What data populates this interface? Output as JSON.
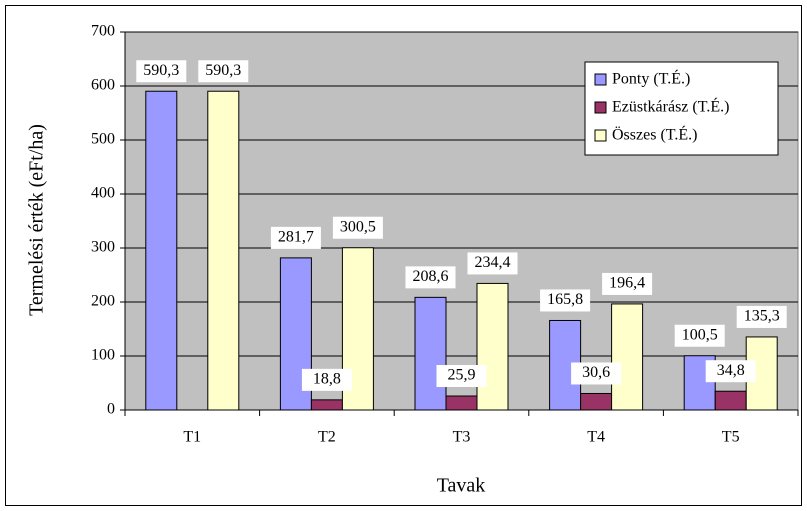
{
  "chart_data": {
    "type": "bar",
    "y_label": "Termelési érték (eFt/ha)",
    "x_label": "Tavak",
    "categories": [
      "T1",
      "T2",
      "T3",
      "T4",
      "T5"
    ],
    "series": [
      {
        "name": "Ponty (T.É.)",
        "color": "#9999ff",
        "values": [
          590.3,
          281.7,
          208.6,
          165.8,
          100.5
        ],
        "value_labels": [
          "590,3",
          "281,7",
          "208,6",
          "165,8",
          "100,5"
        ]
      },
      {
        "name": "Ezüstkárász (T.É.)",
        "color": "#993366",
        "values": [
          null,
          18.8,
          25.9,
          30.6,
          34.8
        ],
        "value_labels": [
          null,
          "18,8",
          "25,9",
          "30,6",
          "34,8"
        ]
      },
      {
        "name": "Összes (T.É.)",
        "color": "#ffffcc",
        "values": [
          590.3,
          300.5,
          234.4,
          196.4,
          135.3
        ],
        "value_labels": [
          "590,3",
          "300,5",
          "234,4",
          "196,4",
          "135,3"
        ]
      }
    ],
    "ylim": [
      0,
      700
    ],
    "yticks": [
      0,
      100,
      200,
      300,
      400,
      500,
      600,
      700
    ],
    "grid": true,
    "legend": "top-right",
    "plot_color": "#c0c0c0"
  }
}
